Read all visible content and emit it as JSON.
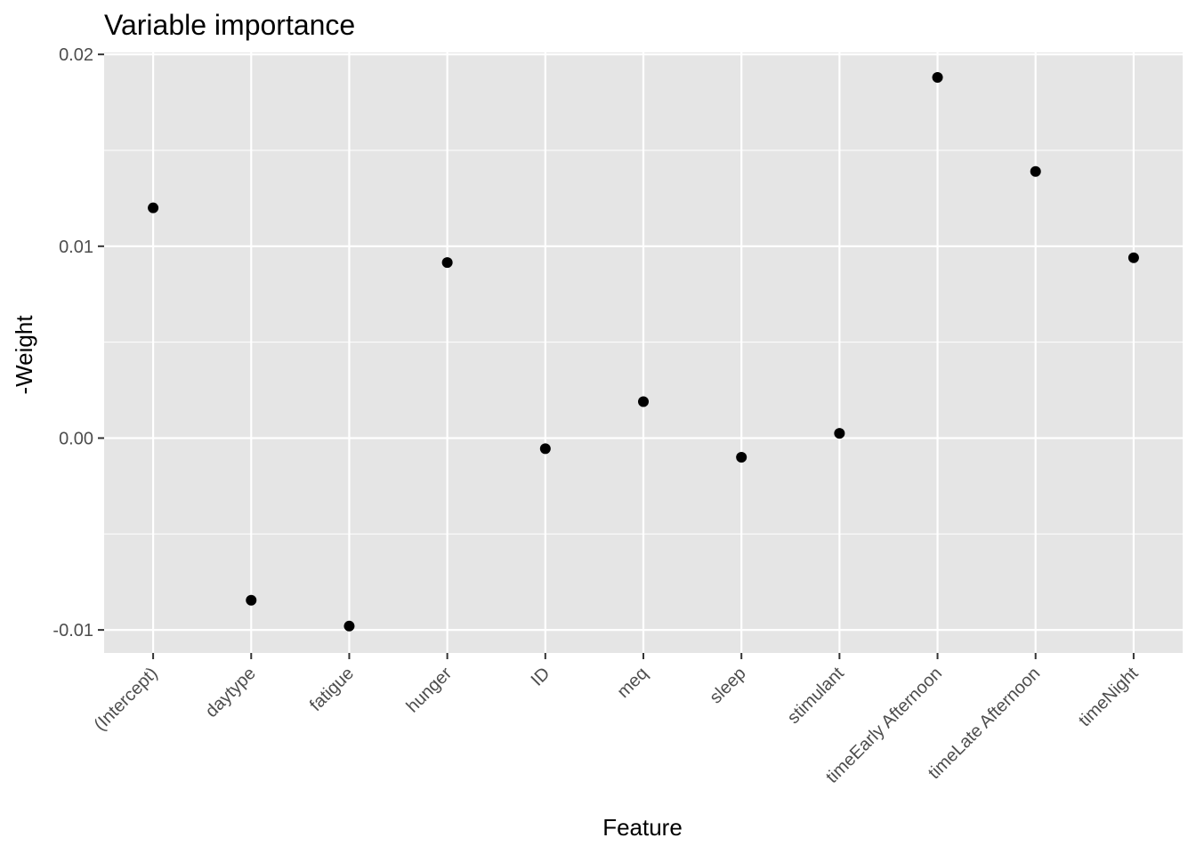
{
  "chart_data": {
    "type": "scatter",
    "title": "Variable importance",
    "xlabel": "Feature",
    "ylabel": "-Weight",
    "categories": [
      "(Intercept)",
      "daytype",
      "fatigue",
      "hunger",
      "ID",
      "meq",
      "sleep",
      "stimulant",
      "timeEarly Afternoon",
      "timeLate Afternoon",
      "timeNight"
    ],
    "values": [
      0.012,
      -0.00845,
      -0.0098,
      0.00915,
      -0.00055,
      0.0019,
      -0.001,
      0.00025,
      0.0188,
      0.0139,
      0.0094
    ],
    "ylim": [
      -0.0112,
      0.0201
    ],
    "yticks": [
      -0.01,
      0.0,
      0.01,
      0.02
    ],
    "ytick_labels": [
      "-0.01",
      "0.00",
      "0.01",
      "0.02"
    ],
    "grid": true,
    "colors": {
      "panel": "#e5e5e5",
      "grid": "#ffffff",
      "point": "#000000",
      "tick_text": "#4d4d4d",
      "tick_mark": "#333333"
    }
  }
}
